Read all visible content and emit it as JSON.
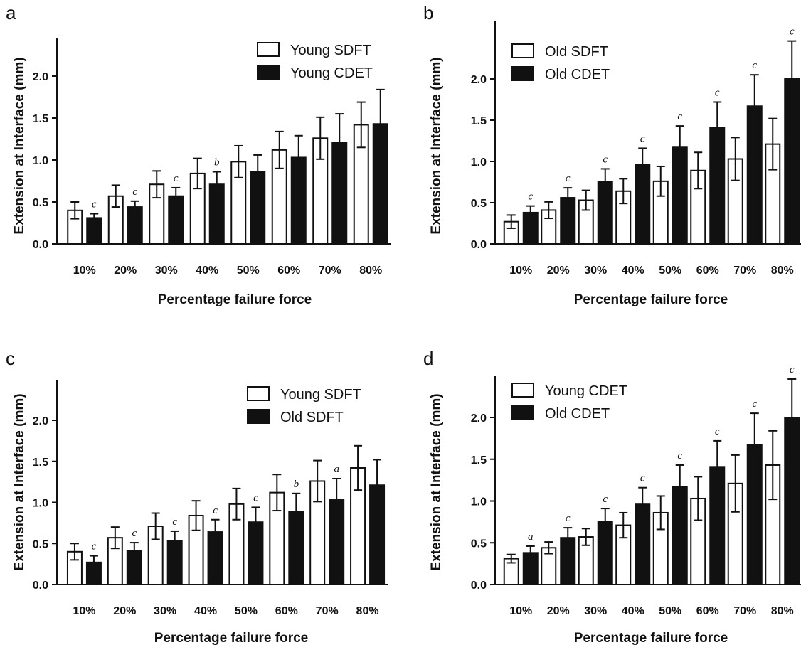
{
  "chart_data": [
    {
      "type": "bar",
      "panel": "a",
      "xlabel": "Percentage failure force",
      "ylabel": "Extension at Interface (mm)",
      "ylim": [
        0,
        2.5
      ],
      "yticks": [
        "0.0",
        "0.5",
        "1.0",
        "1.5",
        "2.0"
      ],
      "categories": [
        "10%",
        "20%",
        "30%",
        "40%",
        "50%",
        "60%",
        "70%",
        "80%"
      ],
      "legend_position": "top-right",
      "series": [
        {
          "name": "Young SDFT",
          "fill": "#ffffff",
          "values": [
            0.4,
            0.57,
            0.71,
            0.84,
            0.98,
            1.12,
            1.26,
            1.42
          ],
          "errors": [
            0.1,
            0.13,
            0.16,
            0.18,
            0.19,
            0.22,
            0.25,
            0.27
          ]
        },
        {
          "name": "Young CDET",
          "fill": "#111111",
          "values": [
            0.31,
            0.44,
            0.57,
            0.71,
            0.86,
            1.03,
            1.21,
            1.43
          ],
          "errors": [
            0.05,
            0.07,
            0.1,
            0.15,
            0.2,
            0.26,
            0.34,
            0.41
          ]
        }
      ],
      "annotations": [
        {
          "category": "10%",
          "text": "c"
        },
        {
          "category": "20%",
          "text": "c"
        },
        {
          "category": "30%",
          "text": "c"
        },
        {
          "category": "40%",
          "text": "b"
        }
      ]
    },
    {
      "type": "bar",
      "panel": "b",
      "xlabel": "Percentage failure force",
      "ylabel": "Extension at Interface (mm)",
      "ylim": [
        0,
        2.5
      ],
      "yticks": [
        "0.0",
        "0.5",
        "1.0",
        "1.5",
        "2.0"
      ],
      "categories": [
        "10%",
        "20%",
        "30%",
        "40%",
        "50%",
        "60%",
        "70%",
        "80%"
      ],
      "legend_position": "top-left",
      "series": [
        {
          "name": "Old SDFT",
          "fill": "#ffffff",
          "values": [
            0.27,
            0.41,
            0.53,
            0.64,
            0.76,
            0.89,
            1.03,
            1.21
          ],
          "errors": [
            0.08,
            0.1,
            0.12,
            0.15,
            0.18,
            0.22,
            0.26,
            0.31
          ]
        },
        {
          "name": "Old CDET",
          "fill": "#111111",
          "values": [
            0.38,
            0.56,
            0.75,
            0.96,
            1.17,
            1.41,
            1.67,
            2.0
          ],
          "errors": [
            0.08,
            0.12,
            0.16,
            0.2,
            0.26,
            0.31,
            0.38,
            0.46
          ]
        }
      ],
      "annotations": [
        {
          "category": "10%",
          "text": "c"
        },
        {
          "category": "20%",
          "text": "c"
        },
        {
          "category": "30%",
          "text": "c"
        },
        {
          "category": "40%",
          "text": "c"
        },
        {
          "category": "50%",
          "text": "c"
        },
        {
          "category": "60%",
          "text": "c"
        },
        {
          "category": "70%",
          "text": "c"
        },
        {
          "category": "80%",
          "text": "c"
        }
      ]
    },
    {
      "type": "bar",
      "panel": "c",
      "xlabel": "Percentage failure force",
      "ylabel": "Extension at Interface (mm)",
      "ylim": [
        0,
        2.5
      ],
      "yticks": [
        "0.0",
        "0.5",
        "1.0",
        "1.5",
        "2.0"
      ],
      "categories": [
        "10%",
        "20%",
        "30%",
        "40%",
        "50%",
        "60%",
        "70%",
        "80%"
      ],
      "legend_position": "top-right",
      "series": [
        {
          "name": "Young SDFT",
          "fill": "#ffffff",
          "values": [
            0.4,
            0.57,
            0.71,
            0.84,
            0.98,
            1.12,
            1.26,
            1.42
          ],
          "errors": [
            0.1,
            0.13,
            0.16,
            0.18,
            0.19,
            0.22,
            0.25,
            0.27
          ]
        },
        {
          "name": "Old SDFT",
          "fill": "#111111",
          "values": [
            0.27,
            0.41,
            0.53,
            0.64,
            0.76,
            0.89,
            1.03,
            1.21
          ],
          "errors": [
            0.08,
            0.1,
            0.12,
            0.15,
            0.18,
            0.22,
            0.26,
            0.31
          ]
        }
      ],
      "annotations": [
        {
          "category": "10%",
          "text": "c"
        },
        {
          "category": "20%",
          "text": "c"
        },
        {
          "category": "30%",
          "text": "c"
        },
        {
          "category": "40%",
          "text": "c"
        },
        {
          "category": "50%",
          "text": "c"
        },
        {
          "category": "60%",
          "text": "b"
        },
        {
          "category": "70%",
          "text": "a"
        }
      ]
    },
    {
      "type": "bar",
      "panel": "d",
      "xlabel": "Percentage failure force",
      "ylabel": "Extension at Interface (mm)",
      "ylim": [
        0,
        2.5
      ],
      "yticks": [
        "0.0",
        "0.5",
        "1.0",
        "1.5",
        "2.0"
      ],
      "categories": [
        "10%",
        "20%",
        "30%",
        "40%",
        "50%",
        "60%",
        "70%",
        "80%"
      ],
      "legend_position": "top-left",
      "series": [
        {
          "name": "Young CDET",
          "fill": "#ffffff",
          "values": [
            0.31,
            0.44,
            0.57,
            0.71,
            0.86,
            1.03,
            1.21,
            1.43
          ],
          "errors": [
            0.05,
            0.07,
            0.1,
            0.15,
            0.2,
            0.26,
            0.34,
            0.41
          ]
        },
        {
          "name": "Old CDET",
          "fill": "#111111",
          "values": [
            0.38,
            0.56,
            0.75,
            0.96,
            1.17,
            1.41,
            1.67,
            2.0
          ],
          "errors": [
            0.08,
            0.12,
            0.16,
            0.2,
            0.26,
            0.31,
            0.38,
            0.46
          ]
        }
      ],
      "annotations": [
        {
          "category": "10%",
          "text": "a"
        },
        {
          "category": "20%",
          "text": "c"
        },
        {
          "category": "30%",
          "text": "c"
        },
        {
          "category": "40%",
          "text": "c"
        },
        {
          "category": "50%",
          "text": "c"
        },
        {
          "category": "60%",
          "text": "c"
        },
        {
          "category": "70%",
          "text": "c"
        },
        {
          "category": "80%",
          "text": "c"
        }
      ]
    }
  ]
}
